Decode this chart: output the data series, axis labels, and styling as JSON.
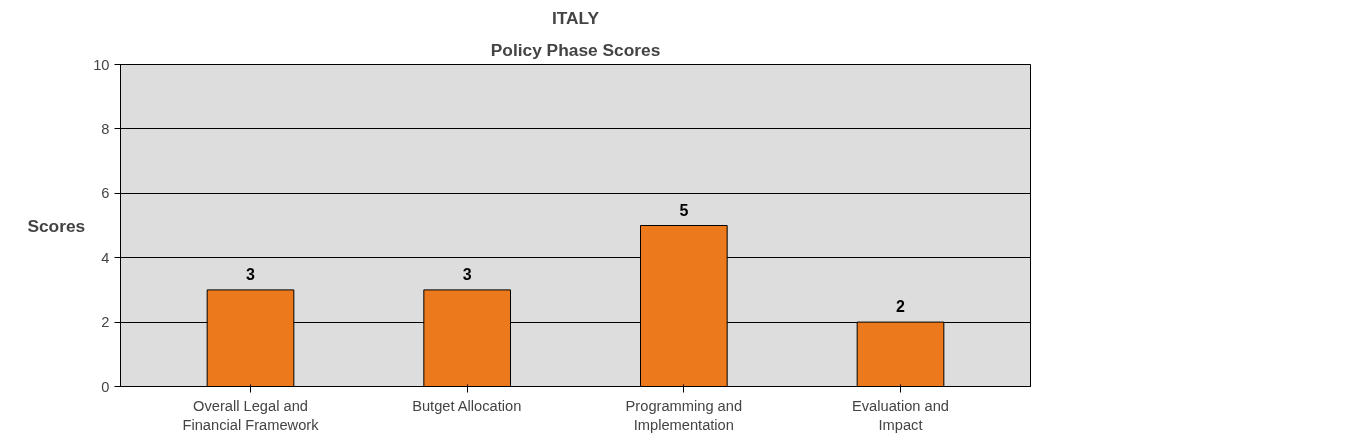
{
  "chart_data": {
    "type": "bar",
    "title": "ITALY",
    "subtitle": "Policy Phase Scores",
    "ylabel": "Scores",
    "categories": [
      "Overall Legal and Financial Framework",
      "Butget Allocation",
      "Programming and Implementation",
      "Evaluation and Impact"
    ],
    "values": [
      3,
      3,
      5,
      2
    ],
    "color": "#ec7a1c",
    "ylim": [
      0,
      10
    ],
    "yticks": [
      0,
      2,
      4,
      6,
      8,
      10
    ],
    "grid": "y",
    "data_labels": true
  }
}
